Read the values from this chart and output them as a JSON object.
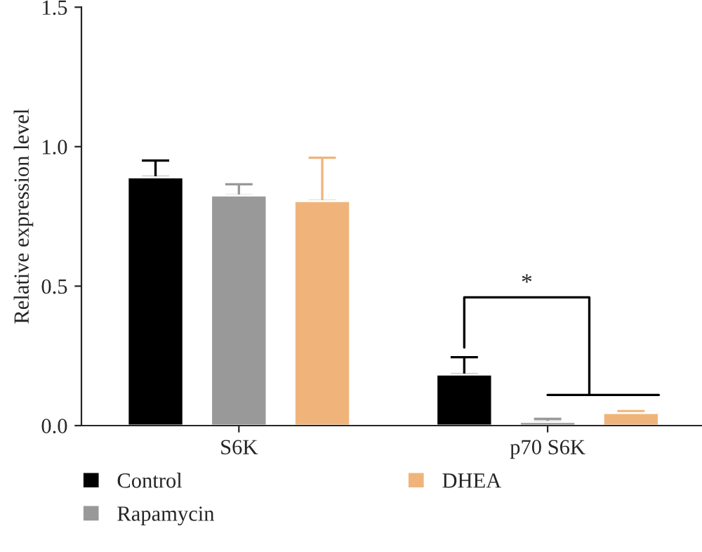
{
  "chart_data": {
    "type": "bar",
    "ylabel": "Relative expression level",
    "categories": [
      "S6K",
      "p70 S6K"
    ],
    "series": [
      {
        "name": "Control",
        "color": "#000000",
        "values": [
          0.89,
          0.183
        ],
        "errors": [
          [
            0.89,
            0.95
          ],
          [
            0.183,
            0.245
          ]
        ]
      },
      {
        "name": "Rapamycin",
        "color": "#999999",
        "values": [
          0.825,
          0.013
        ],
        "errors": [
          [
            0.825,
            0.865
          ],
          [
            0.013,
            0.024
          ]
        ]
      },
      {
        "name": "DHEA",
        "color": "#f0b47a",
        "values": [
          0.805,
          0.045
        ],
        "errors": [
          [
            0.805,
            0.96
          ],
          [
            0.045,
            0.052
          ]
        ]
      }
    ],
    "ylim": [
      0,
      1.5
    ],
    "yticks": [
      {
        "value": 0,
        "label": "0.0"
      },
      0.5,
      {
        "value": 1,
        "label": "1.0"
      },
      1.5
    ],
    "annotations": [
      "*"
    ],
    "grid": false,
    "legend": "bottom"
  }
}
